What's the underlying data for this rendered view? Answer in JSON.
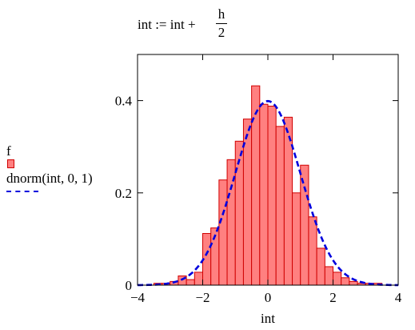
{
  "formula": {
    "lhs": "int :=  int +",
    "numerator": "h",
    "denominator": "2"
  },
  "legend": {
    "series1_label": "f",
    "series2_label": "dnorm(int, 0, 1)"
  },
  "chart_data": {
    "type": "bar",
    "xlabel": "int",
    "ylabel": "",
    "xlim": [
      -4,
      4
    ],
    "ylim": [
      0,
      0.5
    ],
    "xticks": [
      -4,
      -2,
      0,
      2,
      4
    ],
    "yticks": [
      0,
      0.2,
      0.4
    ],
    "xtick_labels": [
      "−4",
      "−2",
      "0",
      "2",
      "4"
    ],
    "ytick_labels": [
      "0",
      "0.2",
      "0.4"
    ],
    "bin_width": 0.25,
    "series": [
      {
        "kind": "histogram",
        "color": "#ff8080",
        "edge_color": "#d00000",
        "bin_centers": [
          -3.375,
          -3.125,
          -2.875,
          -2.625,
          -2.375,
          -2.125,
          -1.875,
          -1.625,
          -1.375,
          -1.125,
          -0.875,
          -0.625,
          -0.375,
          -0.125,
          0.125,
          0.375,
          0.625,
          0.875,
          1.125,
          1.375,
          1.625,
          1.875,
          2.125,
          2.375,
          2.625,
          2.875,
          3.125,
          3.375
        ],
        "values": [
          0.004,
          0.004,
          0.008,
          0.02,
          0.012,
          0.028,
          0.112,
          0.124,
          0.228,
          0.272,
          0.312,
          0.36,
          0.432,
          0.392,
          0.388,
          0.344,
          0.364,
          0.2,
          0.26,
          0.148,
          0.08,
          0.04,
          0.028,
          0.016,
          0.008,
          0.004,
          0.004,
          0.004
        ]
      },
      {
        "kind": "line",
        "color": "#0000dd",
        "dash": true,
        "function": "dnorm(int, 0, 1)"
      }
    ]
  }
}
